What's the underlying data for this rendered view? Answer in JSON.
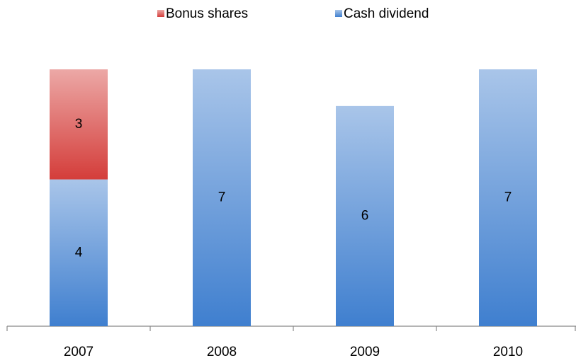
{
  "chart_data": {
    "type": "bar",
    "stacked": true,
    "categories": [
      "2007",
      "2008",
      "2009",
      "2010"
    ],
    "series": [
      {
        "name": "Cash dividend",
        "color": "#3f7fcf",
        "values": [
          4,
          7,
          6,
          7
        ]
      },
      {
        "name": "Bonus shares",
        "color": "#d43d3a",
        "values": [
          3,
          null,
          null,
          null
        ]
      }
    ],
    "ylim": [
      0,
      7
    ],
    "legend": "top"
  }
}
